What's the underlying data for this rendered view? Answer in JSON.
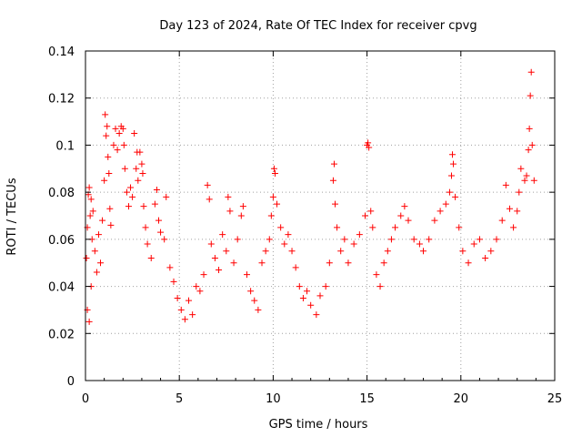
{
  "chart_data": {
    "type": "scatter",
    "title": "Day 123 of 2024, Rate Of TEC Index for receiver cpvg",
    "xlabel": "GPS time / hours",
    "ylabel": "ROTI / TECUs",
    "xlim": [
      0,
      25
    ],
    "ylim": [
      0,
      0.14
    ],
    "xticks": [
      0,
      5,
      10,
      15,
      20,
      25
    ],
    "xtick_labels": [
      "0",
      "5",
      "10",
      "15",
      "20",
      "25"
    ],
    "yticks": [
      0,
      0.02,
      0.04,
      0.06,
      0.08,
      0.1,
      0.12,
      0.14
    ],
    "ytick_labels": [
      "0",
      "0.02",
      "0.04",
      "0.06",
      "0.08",
      "0.1",
      "0.12",
      "0.14"
    ],
    "grid": true,
    "marker": "+",
    "color": "#ff0000",
    "series": [
      {
        "name": "ROTI",
        "points": [
          [
            0.05,
            0.052
          ],
          [
            0.1,
            0.065
          ],
          [
            0.15,
            0.079
          ],
          [
            0.2,
            0.082
          ],
          [
            0.25,
            0.07
          ],
          [
            0.3,
            0.077
          ],
          [
            0.35,
            0.06
          ],
          [
            0.4,
            0.072
          ],
          [
            0.1,
            0.03
          ],
          [
            0.2,
            0.025
          ],
          [
            0.3,
            0.04
          ],
          [
            0.5,
            0.055
          ],
          [
            0.6,
            0.046
          ],
          [
            0.7,
            0.062
          ],
          [
            0.8,
            0.05
          ],
          [
            0.9,
            0.068
          ],
          [
            1.0,
            0.085
          ],
          [
            1.05,
            0.113
          ],
          [
            1.1,
            0.104
          ],
          [
            1.15,
            0.108
          ],
          [
            1.2,
            0.095
          ],
          [
            1.25,
            0.088
          ],
          [
            1.3,
            0.073
          ],
          [
            1.35,
            0.066
          ],
          [
            1.5,
            0.1
          ],
          [
            1.6,
            0.107
          ],
          [
            1.7,
            0.098
          ],
          [
            1.8,
            0.105
          ],
          [
            1.9,
            0.108
          ],
          [
            2.0,
            0.107
          ],
          [
            2.05,
            0.1
          ],
          [
            2.1,
            0.09
          ],
          [
            2.2,
            0.08
          ],
          [
            2.3,
            0.074
          ],
          [
            2.4,
            0.082
          ],
          [
            2.5,
            0.078
          ],
          [
            2.6,
            0.105
          ],
          [
            2.7,
            0.09
          ],
          [
            2.75,
            0.097
          ],
          [
            2.8,
            0.085
          ],
          [
            2.9,
            0.097
          ],
          [
            3.0,
            0.092
          ],
          [
            3.05,
            0.088
          ],
          [
            3.1,
            0.074
          ],
          [
            3.2,
            0.065
          ],
          [
            3.3,
            0.058
          ],
          [
            3.5,
            0.052
          ],
          [
            3.7,
            0.075
          ],
          [
            3.8,
            0.081
          ],
          [
            3.9,
            0.068
          ],
          [
            4.0,
            0.063
          ],
          [
            4.2,
            0.06
          ],
          [
            4.3,
            0.078
          ],
          [
            4.5,
            0.048
          ],
          [
            4.7,
            0.042
          ],
          [
            4.9,
            0.035
          ],
          [
            5.1,
            0.03
          ],
          [
            5.3,
            0.026
          ],
          [
            5.5,
            0.034
          ],
          [
            5.7,
            0.028
          ],
          [
            5.9,
            0.04
          ],
          [
            6.1,
            0.038
          ],
          [
            6.3,
            0.045
          ],
          [
            6.5,
            0.083
          ],
          [
            6.6,
            0.077
          ],
          [
            6.7,
            0.058
          ],
          [
            6.9,
            0.052
          ],
          [
            7.1,
            0.047
          ],
          [
            7.3,
            0.062
          ],
          [
            7.5,
            0.055
          ],
          [
            7.6,
            0.078
          ],
          [
            7.7,
            0.072
          ],
          [
            7.9,
            0.05
          ],
          [
            8.1,
            0.06
          ],
          [
            8.3,
            0.07
          ],
          [
            8.4,
            0.074
          ],
          [
            8.6,
            0.045
          ],
          [
            8.8,
            0.038
          ],
          [
            9.0,
            0.034
          ],
          [
            9.2,
            0.03
          ],
          [
            9.4,
            0.05
          ],
          [
            9.6,
            0.055
          ],
          [
            9.8,
            0.06
          ],
          [
            9.9,
            0.07
          ],
          [
            10.0,
            0.078
          ],
          [
            10.05,
            0.09
          ],
          [
            10.1,
            0.088
          ],
          [
            10.2,
            0.075
          ],
          [
            10.4,
            0.065
          ],
          [
            10.6,
            0.058
          ],
          [
            10.8,
            0.062
          ],
          [
            11.0,
            0.055
          ],
          [
            11.2,
            0.048
          ],
          [
            11.4,
            0.04
          ],
          [
            11.6,
            0.035
          ],
          [
            11.8,
            0.038
          ],
          [
            12.0,
            0.032
          ],
          [
            12.3,
            0.028
          ],
          [
            12.5,
            0.036
          ],
          [
            12.8,
            0.04
          ],
          [
            13.0,
            0.05
          ],
          [
            13.2,
            0.085
          ],
          [
            13.25,
            0.092
          ],
          [
            13.3,
            0.075
          ],
          [
            13.4,
            0.065
          ],
          [
            13.6,
            0.055
          ],
          [
            13.8,
            0.06
          ],
          [
            14.0,
            0.05
          ],
          [
            14.3,
            0.058
          ],
          [
            14.6,
            0.062
          ],
          [
            14.9,
            0.07
          ],
          [
            15.0,
            0.1
          ],
          [
            15.05,
            0.101
          ],
          [
            15.1,
            0.099
          ],
          [
            15.2,
            0.072
          ],
          [
            15.3,
            0.065
          ],
          [
            15.5,
            0.045
          ],
          [
            15.7,
            0.04
          ],
          [
            15.9,
            0.05
          ],
          [
            16.1,
            0.055
          ],
          [
            16.3,
            0.06
          ],
          [
            16.5,
            0.065
          ],
          [
            16.8,
            0.07
          ],
          [
            17.0,
            0.074
          ],
          [
            17.2,
            0.068
          ],
          [
            17.5,
            0.06
          ],
          [
            17.8,
            0.058
          ],
          [
            18.0,
            0.055
          ],
          [
            18.3,
            0.06
          ],
          [
            18.6,
            0.068
          ],
          [
            18.9,
            0.072
          ],
          [
            19.2,
            0.075
          ],
          [
            19.4,
            0.08
          ],
          [
            19.5,
            0.087
          ],
          [
            19.55,
            0.096
          ],
          [
            19.6,
            0.092
          ],
          [
            19.7,
            0.078
          ],
          [
            19.9,
            0.065
          ],
          [
            20.1,
            0.055
          ],
          [
            20.4,
            0.05
          ],
          [
            20.7,
            0.058
          ],
          [
            21.0,
            0.06
          ],
          [
            21.3,
            0.052
          ],
          [
            21.6,
            0.055
          ],
          [
            21.9,
            0.06
          ],
          [
            22.2,
            0.068
          ],
          [
            22.4,
            0.083
          ],
          [
            22.6,
            0.073
          ],
          [
            22.8,
            0.065
          ],
          [
            23.0,
            0.072
          ],
          [
            23.1,
            0.08
          ],
          [
            23.2,
            0.09
          ],
          [
            23.4,
            0.085
          ],
          [
            23.5,
            0.087
          ],
          [
            23.6,
            0.098
          ],
          [
            23.65,
            0.107
          ],
          [
            23.7,
            0.121
          ],
          [
            23.75,
            0.131
          ],
          [
            23.8,
            0.1
          ],
          [
            23.9,
            0.085
          ]
        ]
      }
    ]
  }
}
